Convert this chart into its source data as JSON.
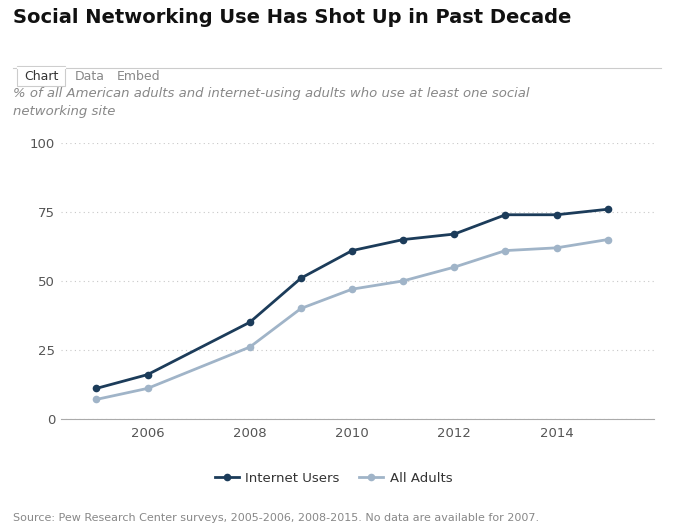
{
  "title": "Social Networking Use Has Shot Up in Past Decade",
  "subtitle": "% of all American adults and internet-using adults who use at least one social\nnetworking site",
  "source": "Source: Pew Research Center surveys, 2005-2006, 2008-2015. No data are available for 2007.",
  "tab_labels": [
    "Chart",
    "Data",
    "Embed"
  ],
  "internet_users": {
    "years": [
      2005,
      2006,
      2008,
      2009,
      2010,
      2011,
      2012,
      2013,
      2014,
      2015
    ],
    "values": [
      11,
      16,
      35,
      51,
      61,
      65,
      67,
      74,
      74,
      76
    ]
  },
  "all_adults": {
    "years": [
      2005,
      2006,
      2008,
      2009,
      2010,
      2011,
      2012,
      2013,
      2014,
      2015
    ],
    "values": [
      7,
      11,
      26,
      40,
      47,
      50,
      55,
      61,
      62,
      65
    ]
  },
  "internet_users_color": "#1c3c5a",
  "all_adults_color": "#a0b4c8",
  "legend_labels": [
    "Internet Users",
    "All Adults"
  ],
  "ylim": [
    0,
    100
  ],
  "yticks": [
    0,
    25,
    50,
    75,
    100
  ],
  "bg_color": "#ffffff",
  "grid_color": "#c8c8c8",
  "title_fontsize": 14,
  "subtitle_fontsize": 9.5,
  "source_fontsize": 8,
  "legend_fontsize": 9.5,
  "tick_fontsize": 9.5
}
